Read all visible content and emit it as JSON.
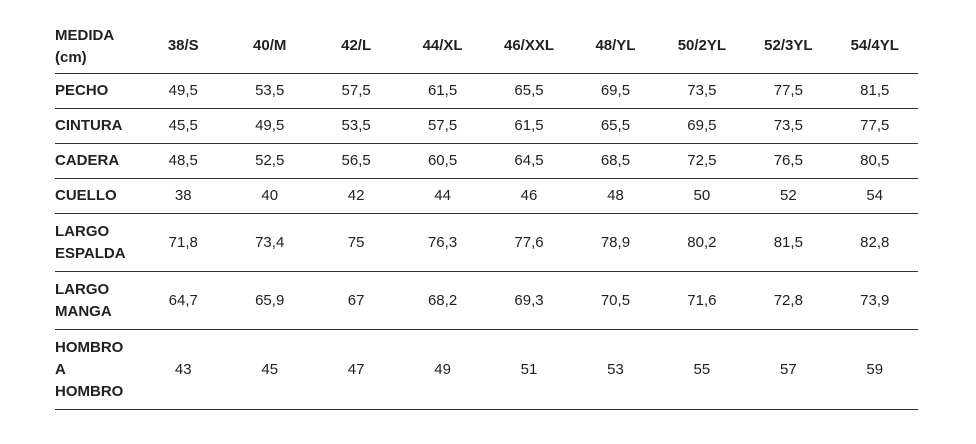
{
  "table": {
    "corner_label": "MEDIDA\n(cm)",
    "columns": [
      "38/S",
      "40/M",
      "42/L",
      "44/XL",
      "46/XXL",
      "48/YL",
      "50/2YL",
      "52/3YL",
      "54/4YL"
    ],
    "rows": [
      {
        "label": "PECHO",
        "values": [
          "49,5",
          "53,5",
          "57,5",
          "61,5",
          "65,5",
          "69,5",
          "73,5",
          "77,5",
          "81,5"
        ]
      },
      {
        "label": "CINTURA",
        "values": [
          "45,5",
          "49,5",
          "53,5",
          "57,5",
          "61,5",
          "65,5",
          "69,5",
          "73,5",
          "77,5"
        ]
      },
      {
        "label": "CADERA",
        "values": [
          "48,5",
          "52,5",
          "56,5",
          "60,5",
          "64,5",
          "68,5",
          "72,5",
          "76,5",
          "80,5"
        ]
      },
      {
        "label": "CUELLO",
        "values": [
          "38",
          "40",
          "42",
          "44",
          "46",
          "48",
          "50",
          "52",
          "54"
        ]
      },
      {
        "label": "LARGO\nESPALDA",
        "values": [
          "71,8",
          "73,4",
          "75",
          "76,3",
          "77,6",
          "78,9",
          "80,2",
          "81,5",
          "82,8"
        ]
      },
      {
        "label": "LARGO\nMANGA",
        "values": [
          "64,7",
          "65,9",
          "67",
          "68,2",
          "69,3",
          "70,5",
          "71,6",
          "72,8",
          "73,9"
        ]
      },
      {
        "label": "HOMBRO\nA\nHOMBRO",
        "values": [
          "43",
          "45",
          "47",
          "49",
          "51",
          "53",
          "55",
          "57",
          "59"
        ]
      }
    ]
  }
}
